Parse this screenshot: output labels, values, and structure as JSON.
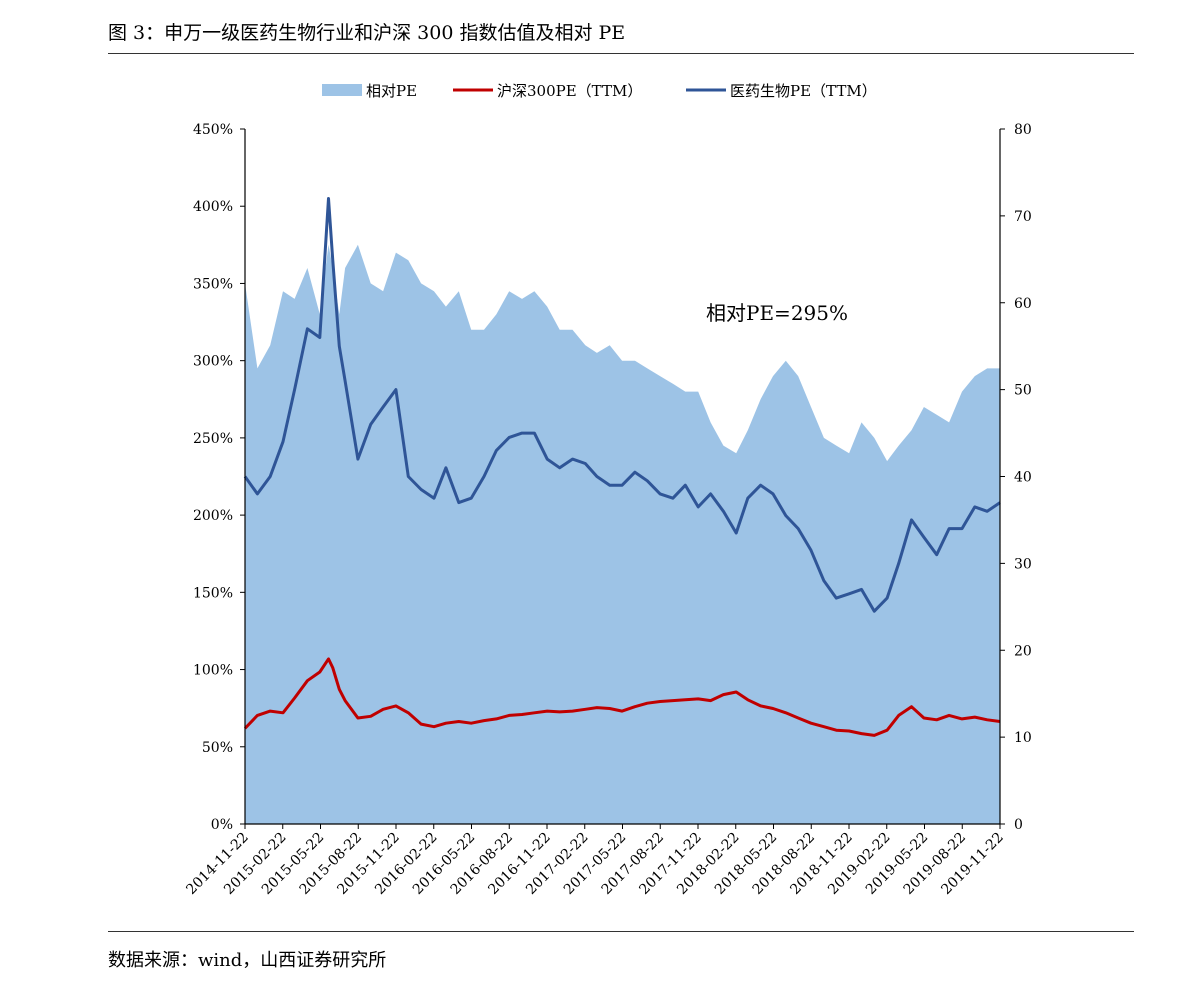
{
  "figure": {
    "title": "图 3：申万一级医药生物行业和沪深 300 指数估值及相对 PE",
    "source": "数据来源：wind，山西证券研究所"
  },
  "colors": {
    "relative_pe_fill": "#9DC3E6",
    "hs300_line": "#C00000",
    "pharma_line": "#2F5597",
    "axis": "#000000"
  },
  "chart_data": {
    "type": "area",
    "legend": {
      "placement": "top-center",
      "items": [
        {
          "label": "相对PE",
          "kind": "area"
        },
        {
          "label": "沪深300PE（TTM）",
          "kind": "line"
        },
        {
          "label": "医药生物PE（TTM）",
          "kind": "line"
        }
      ]
    },
    "annotation": "相对PE=295%",
    "x_tick_labels": [
      "2014-11-22",
      "2015-02-22",
      "2015-05-22",
      "2015-08-22",
      "2015-11-22",
      "2016-02-22",
      "2016-05-22",
      "2016-08-22",
      "2016-11-22",
      "2017-02-22",
      "2017-05-22",
      "2017-08-22",
      "2017-11-22",
      "2018-02-22",
      "2018-05-22",
      "2018-08-22",
      "2018-11-22",
      "2019-02-22",
      "2019-05-22",
      "2019-08-22",
      "2019-11-22"
    ],
    "x_range": [
      "2014-11-22",
      "2019-11-22"
    ],
    "y_left": {
      "range": [
        0,
        450
      ],
      "ticks": [
        0,
        50,
        100,
        150,
        200,
        250,
        300,
        350,
        400,
        450
      ],
      "tick_labels": [
        "0%",
        "50%",
        "100%",
        "150%",
        "200%",
        "250%",
        "300%",
        "350%",
        "400%",
        "450%"
      ]
    },
    "y_right": {
      "range": [
        0,
        80
      ],
      "ticks": [
        0,
        10,
        20,
        30,
        40,
        50,
        60,
        70,
        80
      ],
      "tick_labels": [
        "0",
        "10",
        "20",
        "30",
        "40",
        "50",
        "60",
        "70",
        "80"
      ]
    },
    "grid": false,
    "x": [
      "2014-11-22",
      "2014-12-22",
      "2015-01-22",
      "2015-02-22",
      "2015-03-22",
      "2015-04-22",
      "2015-05-22",
      "2015-06-12",
      "2015-06-22",
      "2015-07-08",
      "2015-07-22",
      "2015-08-22",
      "2015-09-22",
      "2015-10-22",
      "2015-11-22",
      "2015-12-22",
      "2016-01-22",
      "2016-02-22",
      "2016-03-22",
      "2016-04-22",
      "2016-05-22",
      "2016-06-22",
      "2016-07-22",
      "2016-08-22",
      "2016-09-22",
      "2016-10-22",
      "2016-11-22",
      "2016-12-22",
      "2017-01-22",
      "2017-02-22",
      "2017-03-22",
      "2017-04-22",
      "2017-05-22",
      "2017-06-22",
      "2017-07-22",
      "2017-08-22",
      "2017-09-22",
      "2017-10-22",
      "2017-11-22",
      "2017-12-22",
      "2018-01-22",
      "2018-02-22",
      "2018-03-22",
      "2018-04-22",
      "2018-05-22",
      "2018-06-22",
      "2018-07-22",
      "2018-08-22",
      "2018-09-22",
      "2018-10-22",
      "2018-11-22",
      "2018-12-22",
      "2019-01-22",
      "2019-02-22",
      "2019-03-22",
      "2019-04-22",
      "2019-05-22",
      "2019-06-22",
      "2019-07-22",
      "2019-08-22",
      "2019-09-22",
      "2019-10-22",
      "2019-11-22"
    ],
    "series": [
      {
        "name": "相对PE",
        "axis": "left",
        "type": "area",
        "values": [
          350,
          295,
          310,
          345,
          340,
          360,
          330,
          375,
          360,
          330,
          360,
          375,
          350,
          345,
          370,
          365,
          350,
          345,
          335,
          345,
          320,
          320,
          330,
          345,
          340,
          345,
          335,
          320,
          320,
          310,
          305,
          310,
          300,
          300,
          295,
          290,
          285,
          280,
          280,
          260,
          245,
          240,
          255,
          275,
          290,
          300,
          290,
          270,
          250,
          245,
          240,
          260,
          250,
          235,
          245,
          255,
          270,
          265,
          260,
          280,
          290,
          295,
          295
        ]
      },
      {
        "name": "沪深300PE（TTM）",
        "axis": "right",
        "type": "line",
        "values": [
          11.0,
          12.5,
          13.0,
          12.8,
          14.5,
          16.5,
          17.5,
          19.0,
          18.0,
          15.5,
          14.2,
          12.2,
          12.4,
          13.2,
          13.6,
          12.8,
          11.5,
          11.2,
          11.6,
          11.8,
          11.6,
          11.9,
          12.1,
          12.5,
          12.6,
          12.8,
          13.0,
          12.9,
          13.0,
          13.2,
          13.4,
          13.3,
          13.0,
          13.5,
          13.9,
          14.1,
          14.2,
          14.3,
          14.4,
          14.2,
          14.9,
          15.2,
          14.3,
          13.6,
          13.3,
          12.8,
          12.2,
          11.6,
          11.2,
          10.8,
          10.7,
          10.4,
          10.2,
          10.8,
          12.5,
          13.5,
          12.2,
          12.0,
          12.5,
          12.1,
          12.3,
          12.0,
          11.8
        ]
      },
      {
        "name": "医药生物PE（TTM）",
        "axis": "right",
        "type": "line",
        "values": [
          40.0,
          38.0,
          40.0,
          44.0,
          50.0,
          57.0,
          56.0,
          72.0,
          65.0,
          55.0,
          51.0,
          42.0,
          46.0,
          48.0,
          50.0,
          40.0,
          38.5,
          37.5,
          41.0,
          37.0,
          37.5,
          40.0,
          43.0,
          44.5,
          45.0,
          45.0,
          42.0,
          41.0,
          42.0,
          41.5,
          40.0,
          39.0,
          39.0,
          40.5,
          39.5,
          38.0,
          37.5,
          39.0,
          36.5,
          38.0,
          36.0,
          33.5,
          37.5,
          39.0,
          38.0,
          35.5,
          34.0,
          31.5,
          28.0,
          26.0,
          26.5,
          27.0,
          24.5,
          26.0,
          30.0,
          35.0,
          33.0,
          31.0,
          34.0,
          34.0,
          36.5,
          36.0,
          37.0
        ]
      }
    ]
  }
}
